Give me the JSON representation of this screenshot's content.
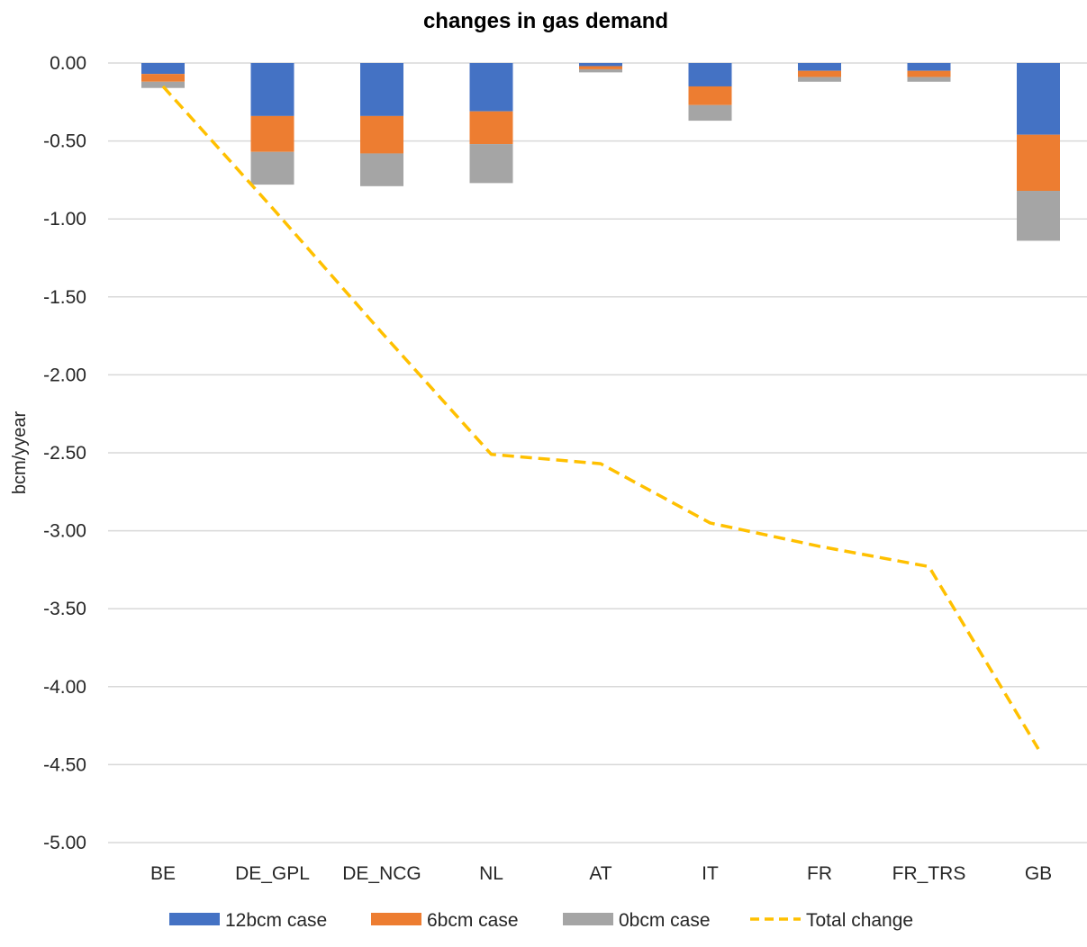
{
  "chart_data": {
    "type": "bar",
    "stacked": true,
    "title": "changes in gas demand",
    "xlabel": "",
    "ylabel": "bcm/yyear",
    "ylim": [
      -5.0,
      0.0
    ],
    "ytick_step": 0.5,
    "ytick_labels": [
      "0.00",
      "-0.50",
      "-1.00",
      "-1.50",
      "-2.00",
      "-2.50",
      "-3.00",
      "-3.50",
      "-4.00",
      "-4.50",
      "-5.00"
    ],
    "grid": true,
    "legend_position": "bottom",
    "categories": [
      "BE",
      "DE_GPL",
      "DE_NCG",
      "NL",
      "AT",
      "IT",
      "FR",
      "FR_TRS",
      "GB"
    ],
    "series": [
      {
        "name": "12bcm case",
        "kind": "bar",
        "color": "#4472C4",
        "values": [
          -0.07,
          -0.34,
          -0.34,
          -0.31,
          -0.02,
          -0.15,
          -0.05,
          -0.05,
          -0.46
        ]
      },
      {
        "name": "6bcm case",
        "kind": "bar",
        "color": "#ED7D31",
        "values": [
          -0.05,
          -0.23,
          -0.24,
          -0.21,
          -0.02,
          -0.12,
          -0.04,
          -0.04,
          -0.36
        ]
      },
      {
        "name": "0bcm case",
        "kind": "bar",
        "color": "#A5A5A5",
        "values": [
          -0.04,
          -0.21,
          -0.21,
          -0.25,
          -0.02,
          -0.1,
          -0.03,
          -0.03,
          -0.32
        ]
      },
      {
        "name": "Total change",
        "kind": "line",
        "style": "dashed",
        "color": "#FFC000",
        "values": [
          -0.15,
          -0.93,
          -1.73,
          -2.51,
          -2.57,
          -2.95,
          -3.1,
          -3.23,
          -4.4
        ]
      }
    ]
  }
}
